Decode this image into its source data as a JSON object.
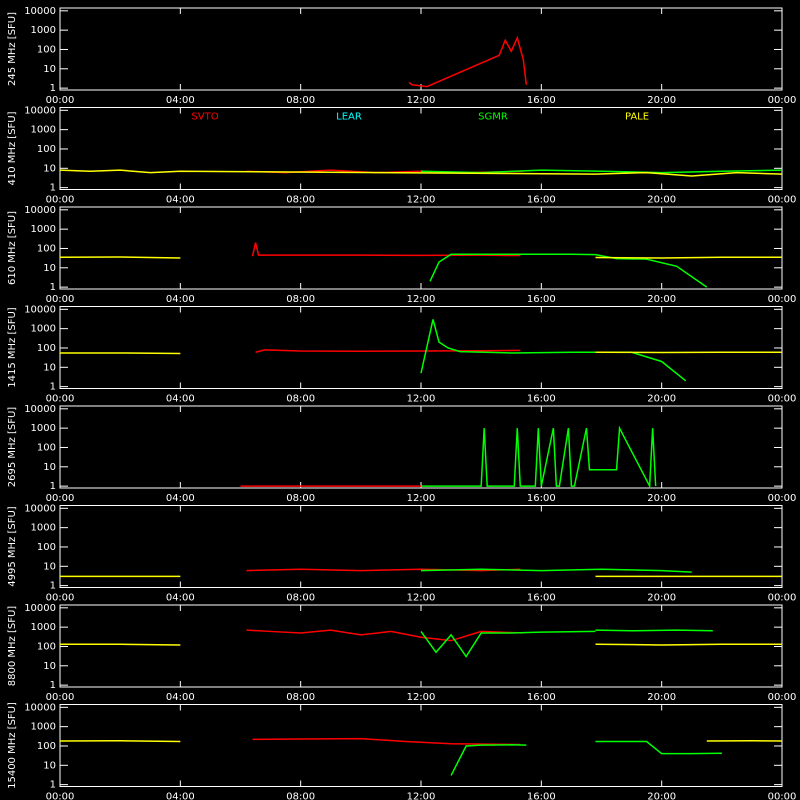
{
  "chart_data": [
    {
      "type": "line",
      "ylabel": "245 MHz [SFU]",
      "xlim": [
        0,
        24
      ],
      "ylim": [
        0.8,
        14000
      ],
      "log_y": true,
      "xticks": [
        {
          "value": 0,
          "label": "00:00"
        },
        {
          "value": 4,
          "label": "04:00"
        },
        {
          "value": 8,
          "label": "08:00"
        },
        {
          "value": 12,
          "label": "12:00"
        },
        {
          "value": 16,
          "label": "16:00"
        },
        {
          "value": 20,
          "label": "20:00"
        },
        {
          "value": 24,
          "label": "00:00"
        }
      ],
      "yticks": [
        1,
        10,
        100,
        1000,
        10000
      ],
      "series": [
        {
          "color": "#ff0000",
          "x": [
            11.6,
            11.7,
            12.2,
            14.6,
            14.8,
            15.0,
            15.2,
            15.4,
            15.5
          ],
          "values": [
            2,
            1.5,
            1.2,
            50,
            300,
            80,
            400,
            30,
            1.5
          ]
        }
      ]
    },
    {
      "type": "line",
      "ylabel": "410 MHz [SFU]",
      "xlim": [
        0,
        24
      ],
      "ylim": [
        0.8,
        14000
      ],
      "log_y": true,
      "xticks": [
        {
          "value": 0,
          "label": "00:00"
        },
        {
          "value": 4,
          "label": "04:00"
        },
        {
          "value": 8,
          "label": "08:00"
        },
        {
          "value": 12,
          "label": "12:00"
        },
        {
          "value": 16,
          "label": "16:00"
        },
        {
          "value": 20,
          "label": "20:00"
        },
        {
          "value": 24,
          "label": "00:00"
        }
      ],
      "yticks": [
        1,
        10,
        100,
        1000,
        10000
      ],
      "series": [
        {
          "name": "SVTO",
          "color": "#ff0000",
          "x": [
            6.2,
            7.5,
            9.0,
            10.5,
            12.0,
            13.5,
            15.4
          ],
          "values": [
            7,
            6,
            8,
            6,
            7,
            6,
            7
          ]
        },
        {
          "name": "LEAR",
          "color": "#00ffff",
          "x": [],
          "values": []
        },
        {
          "name": "SGMR",
          "color": "#00ff00",
          "x": [
            12.0,
            14.0,
            16.0,
            18.0,
            20.0,
            22.0,
            24.0
          ],
          "values": [
            7,
            6,
            8,
            7,
            6,
            7,
            8
          ]
        },
        {
          "name": "PALE",
          "color": "#ffff00",
          "x": [
            0,
            1.0,
            2.0,
            3.0,
            4.0,
            17.8,
            19.5,
            21.0,
            22.5,
            24.0
          ],
          "values": [
            8,
            7,
            8,
            6,
            7,
            5,
            6,
            4,
            6,
            5
          ]
        }
      ]
    },
    {
      "type": "line",
      "ylabel": "610 MHz [SFU]",
      "xlim": [
        0,
        24
      ],
      "ylim": [
        0.8,
        14000
      ],
      "log_y": true,
      "xticks": [
        {
          "value": 0,
          "label": "00:00"
        },
        {
          "value": 4,
          "label": "04:00"
        },
        {
          "value": 8,
          "label": "08:00"
        },
        {
          "value": 12,
          "label": "12:00"
        },
        {
          "value": 16,
          "label": "16:00"
        },
        {
          "value": 20,
          "label": "20:00"
        },
        {
          "value": 24,
          "label": "00:00"
        }
      ],
      "yticks": [
        1,
        10,
        100,
        1000,
        10000
      ],
      "series": [
        {
          "color": "#ffff00",
          "x": [
            0,
            2.0,
            4.0
          ],
          "values": [
            35,
            36,
            32
          ]
        },
        {
          "color": "#ff0000",
          "x": [
            6.4,
            6.5,
            6.6,
            8.0,
            10.0,
            12.0,
            14.0,
            15.3
          ],
          "values": [
            40,
            200,
            45,
            45,
            45,
            44,
            45,
            43
          ]
        },
        {
          "color": "#00ff00",
          "x": [
            12.3,
            12.6,
            13.0,
            15.0,
            17.0,
            17.8,
            18.5,
            19.5,
            20.5,
            21.5
          ],
          "values": [
            2,
            20,
            50,
            50,
            50,
            48,
            30,
            28,
            12,
            1
          ]
        },
        {
          "color": "#ffff00",
          "x": [
            17.8,
            20.0,
            22.0,
            24.0
          ],
          "values": [
            34,
            32,
            35,
            35
          ]
        }
      ]
    },
    {
      "type": "line",
      "ylabel": "1415 MHz [SFU]",
      "xlim": [
        0,
        24
      ],
      "ylim": [
        0.8,
        14000
      ],
      "log_y": true,
      "xticks": [
        {
          "value": 0,
          "label": "00:00"
        },
        {
          "value": 4,
          "label": "04:00"
        },
        {
          "value": 8,
          "label": "08:00"
        },
        {
          "value": 12,
          "label": "12:00"
        },
        {
          "value": 16,
          "label": "16:00"
        },
        {
          "value": 20,
          "label": "20:00"
        },
        {
          "value": 24,
          "label": "00:00"
        }
      ],
      "yticks": [
        1,
        10,
        100,
        1000,
        10000
      ],
      "series": [
        {
          "color": "#ffff00",
          "x": [
            0,
            2.0,
            4.0
          ],
          "values": [
            55,
            55,
            52
          ]
        },
        {
          "color": "#ff0000",
          "x": [
            6.5,
            6.8,
            8.0,
            10.0,
            12.0,
            14.0,
            15.3
          ],
          "values": [
            60,
            80,
            70,
            68,
            70,
            72,
            75
          ]
        },
        {
          "color": "#00ff00",
          "x": [
            12.0,
            12.4,
            12.6,
            12.9,
            13.3,
            15.0,
            17.0,
            17.8,
            19.0,
            20.0,
            20.8
          ],
          "values": [
            5,
            3000,
            200,
            100,
            65,
            55,
            60,
            60,
            60,
            20,
            2
          ]
        },
        {
          "color": "#ffff00",
          "x": [
            17.8,
            20.0,
            22.0,
            24.0
          ],
          "values": [
            60,
            58,
            60,
            60
          ]
        }
      ]
    },
    {
      "type": "line",
      "ylabel": "2695 MHz [SFU]",
      "xlim": [
        0,
        24
      ],
      "ylim": [
        0.8,
        14000
      ],
      "log_y": true,
      "xticks": [
        {
          "value": 0,
          "label": "00:00"
        },
        {
          "value": 4,
          "label": "04:00"
        },
        {
          "value": 8,
          "label": "08:00"
        },
        {
          "value": 12,
          "label": "12:00"
        },
        {
          "value": 16,
          "label": "16:00"
        },
        {
          "value": 20,
          "label": "20:00"
        },
        {
          "value": 24,
          "label": "00:00"
        }
      ],
      "yticks": [
        1,
        10,
        100,
        1000,
        10000
      ],
      "series": [
        {
          "color": "#ff0000",
          "x": [
            6.0,
            9.0,
            12.0
          ],
          "values": [
            1,
            1,
            1
          ]
        },
        {
          "color": "#00ff00",
          "x": [
            12.0,
            14.0,
            14.1,
            14.2,
            15.1,
            15.2,
            15.3,
            15.8,
            15.9,
            16.0,
            16.4,
            16.5,
            16.6,
            16.9,
            17.0,
            17.1,
            17.5,
            17.6,
            18.5,
            18.6,
            19.6,
            19.7,
            19.8
          ],
          "values": [
            1,
            1,
            1000,
            1,
            1,
            1000,
            1,
            1,
            1000,
            1,
            1000,
            1,
            1,
            1000,
            1,
            1,
            1000,
            7,
            7,
            1000,
            1,
            1000,
            1
          ]
        }
      ]
    },
    {
      "type": "line",
      "ylabel": "4995 MHz [SFU]",
      "xlim": [
        0,
        24
      ],
      "ylim": [
        0.8,
        14000
      ],
      "log_y": true,
      "xticks": [
        {
          "value": 0,
          "label": "00:00"
        },
        {
          "value": 4,
          "label": "04:00"
        },
        {
          "value": 8,
          "label": "08:00"
        },
        {
          "value": 12,
          "label": "12:00"
        },
        {
          "value": 16,
          "label": "16:00"
        },
        {
          "value": 20,
          "label": "20:00"
        },
        {
          "value": 24,
          "label": "00:00"
        }
      ],
      "yticks": [
        1,
        10,
        100,
        1000,
        10000
      ],
      "series": [
        {
          "color": "#ffff00",
          "x": [
            0,
            2.0,
            4.0
          ],
          "values": [
            3,
            3,
            3
          ]
        },
        {
          "color": "#ff0000",
          "x": [
            6.2,
            8.0,
            10.0,
            12.0,
            14.0,
            15.3
          ],
          "values": [
            6,
            7,
            6,
            7,
            6,
            7
          ]
        },
        {
          "color": "#00ff00",
          "x": [
            12.0,
            14.0,
            16.0,
            18.0,
            20.0,
            21.0
          ],
          "values": [
            6,
            7,
            6,
            7,
            6,
            5
          ]
        },
        {
          "color": "#ffff00",
          "x": [
            17.8,
            20.0,
            22.0,
            24.0
          ],
          "values": [
            3,
            3,
            3,
            3
          ]
        }
      ]
    },
    {
      "type": "line",
      "ylabel": "8800 MHz [SFU]",
      "xlim": [
        0,
        24
      ],
      "ylim": [
        0.8,
        14000
      ],
      "log_y": true,
      "xticks": [
        {
          "value": 0,
          "label": "00:00"
        },
        {
          "value": 4,
          "label": "04:00"
        },
        {
          "value": 8,
          "label": "08:00"
        },
        {
          "value": 12,
          "label": "12:00"
        },
        {
          "value": 16,
          "label": "16:00"
        },
        {
          "value": 20,
          "label": "20:00"
        },
        {
          "value": 24,
          "label": "00:00"
        }
      ],
      "yticks": [
        1,
        10,
        100,
        1000,
        10000
      ],
      "series": [
        {
          "color": "#ffff00",
          "x": [
            0,
            2.0,
            4.0
          ],
          "values": [
            130,
            130,
            120
          ]
        },
        {
          "color": "#ff0000",
          "x": [
            6.2,
            7.0,
            8.0,
            9.0,
            10.0,
            11.0,
            12.0,
            13.0,
            14.0,
            15.4
          ],
          "values": [
            700,
            600,
            500,
            700,
            400,
            600,
            300,
            200,
            600,
            500
          ]
        },
        {
          "color": "#00ff00",
          "x": [
            12.0,
            12.5,
            13.0,
            13.5,
            14.0,
            15.0,
            16.0,
            17.8
          ],
          "values": [
            600,
            50,
            400,
            30,
            500,
            500,
            550,
            600
          ]
        },
        {
          "color": "#00ff00",
          "x": [
            17.8,
            19.0,
            20.5,
            21.7
          ],
          "values": [
            700,
            650,
            700,
            650
          ]
        },
        {
          "color": "#ffff00",
          "x": [
            17.8,
            20.0,
            22.0,
            24.0
          ],
          "values": [
            130,
            120,
            130,
            130
          ]
        }
      ]
    },
    {
      "type": "line",
      "ylabel": "15400 MHz [SFU]",
      "xlim": [
        0,
        24
      ],
      "ylim": [
        0.8,
        14000
      ],
      "log_y": true,
      "xticks": [
        {
          "value": 0,
          "label": "00:00"
        },
        {
          "value": 4,
          "label": "04:00"
        },
        {
          "value": 8,
          "label": "08:00"
        },
        {
          "value": 12,
          "label": "12:00"
        },
        {
          "value": 16,
          "label": "16:00"
        },
        {
          "value": 20,
          "label": "20:00"
        },
        {
          "value": 24,
          "label": "00:00"
        }
      ],
      "yticks": [
        1,
        10,
        100,
        1000,
        10000
      ],
      "series": [
        {
          "color": "#ffff00",
          "x": [
            0,
            2.0,
            4.0
          ],
          "values": [
            180,
            185,
            170
          ]
        },
        {
          "color": "#ff0000",
          "x": [
            6.4,
            8.0,
            10.0,
            11.5,
            13.0,
            15.3
          ],
          "values": [
            220,
            230,
            240,
            170,
            130,
            120
          ]
        },
        {
          "color": "#00ff00",
          "x": [
            13.0,
            13.5,
            14.0,
            15.0,
            15.5
          ],
          "values": [
            3,
            100,
            110,
            115,
            110
          ]
        },
        {
          "color": "#00ff00",
          "x": [
            17.8,
            19.5,
            20.0,
            21.0,
            22.0
          ],
          "values": [
            170,
            170,
            40,
            40,
            42
          ]
        },
        {
          "color": "#ffff00",
          "x": [
            21.5,
            23.0,
            24.0
          ],
          "values": [
            180,
            185,
            180
          ]
        }
      ]
    }
  ]
}
